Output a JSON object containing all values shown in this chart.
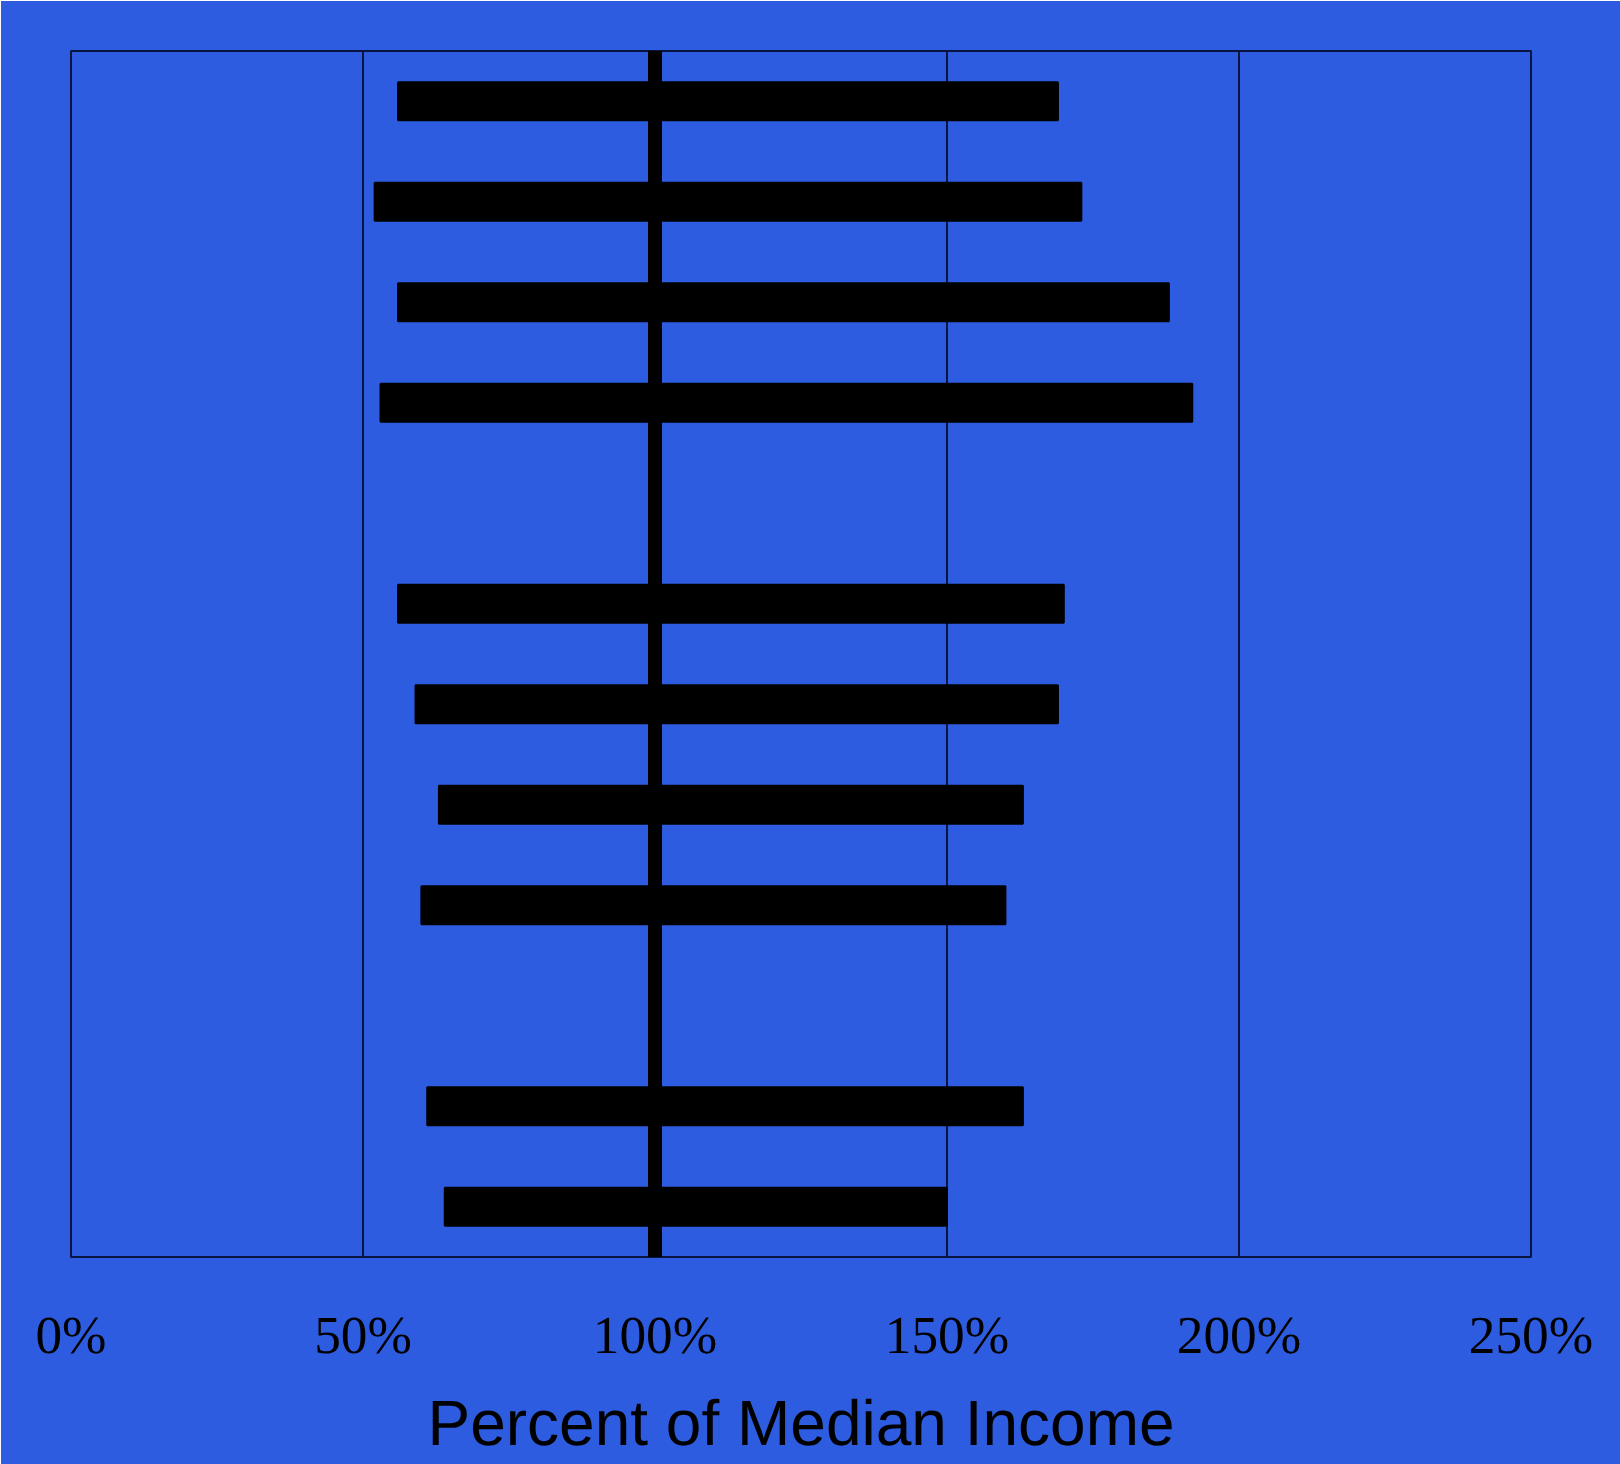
{
  "chart_data": {
    "type": "bar",
    "orientation": "horizontal",
    "xlabel": "Percent of Median Income",
    "categories": [
      null,
      null,
      null,
      null,
      null,
      null,
      null,
      null,
      null,
      null,
      null,
      null
    ],
    "base": [
      56,
      52,
      56,
      53,
      null,
      56,
      59,
      63,
      60,
      null,
      61,
      64
    ],
    "values": [
      113,
      121,
      132,
      139,
      null,
      114,
      110,
      100,
      100,
      null,
      102,
      86
    ],
    "color": "#000000",
    "xlim": [
      0,
      250
    ],
    "xticks": [
      {
        "value": 0,
        "label": "0%"
      },
      {
        "value": 50,
        "label": "50%"
      },
      {
        "value": 100,
        "label": "100%"
      },
      {
        "value": 150,
        "label": "150%"
      },
      {
        "value": 200,
        "label": "200%"
      },
      {
        "value": 250,
        "label": "250%"
      }
    ],
    "tick_labels": "x",
    "grid": "x",
    "ref_lines": [
      {
        "axis": "x",
        "value": 100,
        "color": "#000000"
      }
    ]
  }
}
